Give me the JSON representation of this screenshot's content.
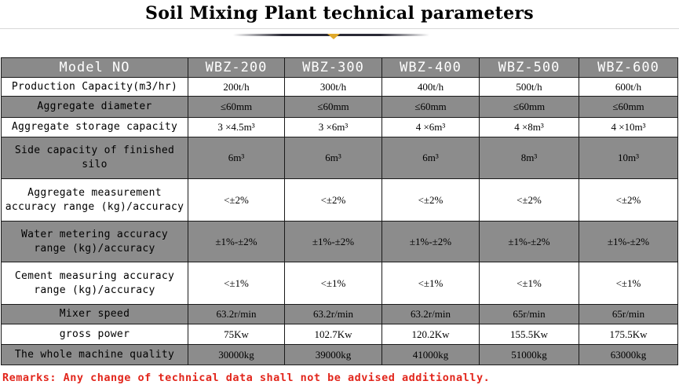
{
  "title": "Soil Mixing Plant technical parameters",
  "colors": {
    "header_bg": "#8a8a8a",
    "gray_row": "#8c8c8c",
    "remarks": "#e2261c",
    "title_marker": "#e0a92a"
  },
  "table": {
    "header": [
      "Model NO",
      "WBZ-200",
      "WBZ-300",
      "WBZ-400",
      "WBZ-500",
      "WBZ-600"
    ],
    "rows": [
      {
        "label": "Production Capacity(m3/hr)",
        "values": [
          "200t/h",
          "300t/h",
          "400t/h",
          "500t/h",
          "600t/h"
        ]
      },
      {
        "label": "Aggregate diameter",
        "values": [
          "≤60mm",
          "≤60mm",
          "≤60mm",
          "≤60mm",
          "≤60mm"
        ]
      },
      {
        "label": "Aggregate storage capacity",
        "values": [
          "3 ×4.5m³",
          "3 ×6m³",
          "4 ×6m³",
          "4 ×8m³",
          "4 ×10m³"
        ]
      },
      {
        "label": "Side capacity of finished silo",
        "values": [
          "6m³",
          "6m³",
          "6m³",
          "8m³",
          "10m³"
        ]
      },
      {
        "label": "Aggregate measurement accuracy range (kg)/accuracy",
        "values": [
          "<±2%",
          "<±2%",
          "<±2%",
          "<±2%",
          "<±2%"
        ]
      },
      {
        "label": "Water metering accuracy range (kg)/accuracy",
        "values": [
          "±1%-±2%",
          "±1%-±2%",
          "±1%-±2%",
          "±1%-±2%",
          "±1%-±2%"
        ]
      },
      {
        "label": "Cement measuring accuracy range (kg)/accuracy",
        "values": [
          "<±1%",
          "<±1%",
          "<±1%",
          "<±1%",
          "<±1%"
        ]
      },
      {
        "label": "Mixer speed",
        "values": [
          "63.2r/min",
          "63.2r/min",
          "63.2r/min",
          "65r/min",
          "65r/min"
        ]
      },
      {
        "label": "gross power",
        "values": [
          "75Kw",
          "102.7Kw",
          "120.2Kw",
          "155.5Kw",
          "175.5Kw"
        ]
      },
      {
        "label": "The whole machine quality",
        "values": [
          "30000kg",
          "39000kg",
          "41000kg",
          "51000kg",
          "63000kg"
        ]
      }
    ]
  },
  "remarks": "Remarks: Any change of technical data shall not be advised additionally."
}
